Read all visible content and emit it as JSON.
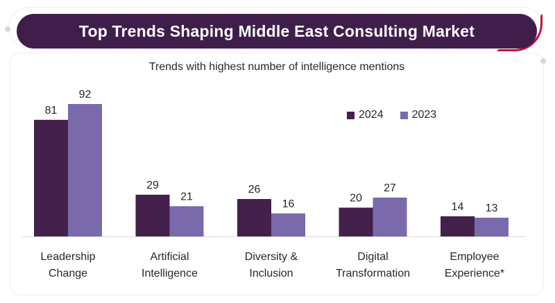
{
  "header": {
    "title": "Top Trends Shaping Middle East Consulting Market"
  },
  "chart_data": {
    "type": "bar",
    "title": "Trends with highest number of intelligence mentions",
    "categories": [
      [
        "Leadership",
        "Change"
      ],
      [
        "Artificial",
        "Intelligence"
      ],
      [
        "Diversity &",
        "Inclusion"
      ],
      [
        "Digital",
        "Transformation"
      ],
      [
        "Employee",
        "Experience*"
      ]
    ],
    "series": [
      {
        "name": "2024",
        "color": "#44204d",
        "values": [
          81,
          29,
          26,
          20,
          14
        ]
      },
      {
        "name": "2023",
        "color": "#7a6aab",
        "values": [
          92,
          21,
          16,
          27,
          13
        ]
      }
    ],
    "ylim": [
      0,
      92
    ],
    "grid": false,
    "legend_position": "top-right",
    "data_labels": true
  }
}
